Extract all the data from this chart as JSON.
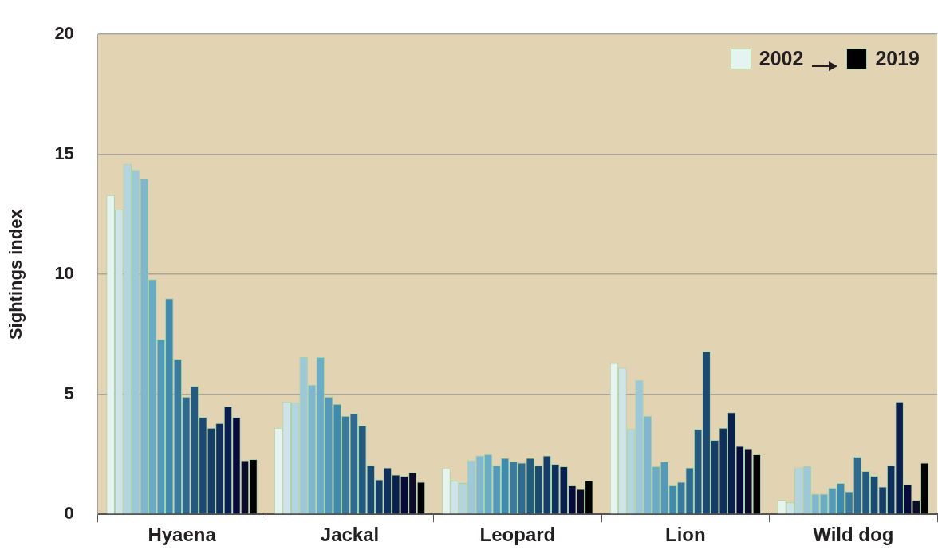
{
  "chart_data": {
    "type": "bar",
    "ylabel": "Sightings index",
    "categories": [
      "Hyaena",
      "Jackal",
      "Leopard",
      "Lion",
      "Wild dog"
    ],
    "ylim": [
      0,
      20
    ],
    "yticks": [
      0,
      5,
      10,
      15,
      20
    ],
    "grid": "y",
    "legend": "top right",
    "series": [
      {
        "name": "2002",
        "color": "#e6f4f1",
        "values": [
          13.3,
          3.6,
          1.9,
          6.3,
          0.6
        ]
      },
      {
        "color": "#cfe4ea",
        "values": [
          12.7,
          4.7,
          1.4,
          6.1,
          0.5
        ]
      },
      {
        "color": "#b3d5e0",
        "values": [
          14.6,
          4.65,
          1.3,
          3.55,
          1.95
        ]
      },
      {
        "color": "#9cc8da",
        "values": [
          14.35,
          6.55,
          2.25,
          5.6,
          2.0
        ]
      },
      {
        "color": "#7fb6d0",
        "values": [
          14.0,
          5.4,
          2.45,
          4.1,
          0.85
        ]
      },
      {
        "color": "#68acc8",
        "values": [
          9.8,
          6.55,
          2.5,
          2.0,
          0.85
        ]
      },
      {
        "color": "#5399bc",
        "values": [
          7.3,
          4.9,
          2.05,
          2.2,
          1.1
        ]
      },
      {
        "color": "#3e8bb0",
        "values": [
          9.0,
          4.6,
          2.35,
          1.2,
          1.3
        ]
      },
      {
        "color": "#3a7aa0",
        "values": [
          6.45,
          4.1,
          2.2,
          1.35,
          0.95
        ]
      },
      {
        "color": "#2f6a92",
        "values": [
          4.9,
          4.2,
          2.15,
          1.95,
          2.4
        ]
      },
      {
        "color": "#235a82",
        "values": [
          5.35,
          3.7,
          2.35,
          3.55,
          1.8
        ]
      },
      {
        "color": "#1a4a74",
        "values": [
          4.05,
          2.05,
          2.05,
          6.8,
          1.6
        ]
      },
      {
        "color": "#163d6a",
        "values": [
          3.6,
          1.45,
          2.45,
          3.1,
          1.15
        ]
      },
      {
        "color": "#0f2f5e",
        "values": [
          3.8,
          1.95,
          2.1,
          3.6,
          2.05
        ]
      },
      {
        "color": "#0a1f50",
        "values": [
          4.5,
          1.65,
          2.0,
          4.25,
          4.7
        ]
      },
      {
        "color": "#080a3e",
        "values": [
          4.05,
          1.6,
          1.2,
          2.85,
          1.25
        ]
      },
      {
        "color": "#0e0a2a",
        "values": [
          2.25,
          1.75,
          1.05,
          2.75,
          0.6
        ]
      },
      {
        "name": "2019",
        "color": "#000000",
        "values": [
          2.3,
          1.35,
          1.4,
          2.5,
          2.15
        ]
      }
    ]
  }
}
